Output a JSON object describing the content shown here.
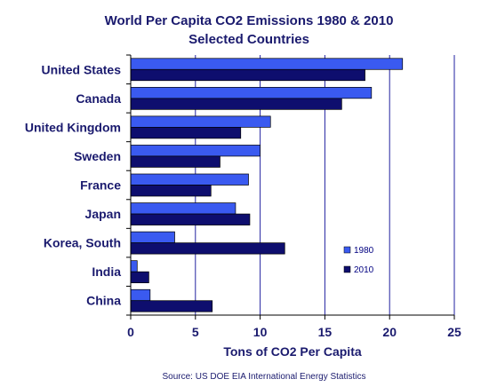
{
  "chart_data": {
    "type": "bar",
    "orientation": "horizontal",
    "title": "World Per Capita CO2 Emissions 1980 & 2010",
    "subtitle": "Selected Countries",
    "xlabel": "Tons of CO2 Per Capita",
    "ylabel": "",
    "xlim": [
      0,
      25
    ],
    "xticks": [
      "0",
      "5",
      "10",
      "15",
      "20",
      "25"
    ],
    "grid": true,
    "legend_position": "right",
    "categories": [
      "United States",
      "Canada",
      "United Kingdom",
      "Sweden",
      "France",
      "Japan",
      "Korea, South",
      "India",
      "China"
    ],
    "series": [
      {
        "name": "1980",
        "color": "#3a5af0",
        "values": [
          21.0,
          18.6,
          10.8,
          10.0,
          9.1,
          8.1,
          3.4,
          0.5,
          1.5
        ]
      },
      {
        "name": "2010",
        "color": "#0e0e6e",
        "values": [
          18.1,
          16.3,
          8.5,
          6.9,
          6.2,
          9.2,
          11.9,
          1.4,
          6.3
        ]
      }
    ],
    "source": "Source: US DOE EIA International Energy Statistics"
  }
}
